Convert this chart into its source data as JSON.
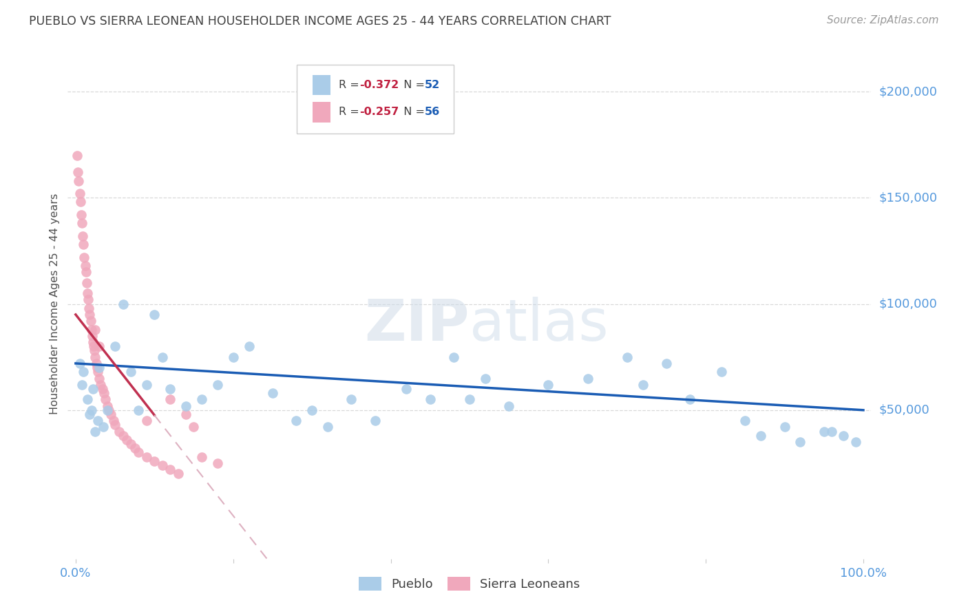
{
  "title": "PUEBLO VS SIERRA LEONEAN HOUSEHOLDER INCOME AGES 25 - 44 YEARS CORRELATION CHART",
  "source": "Source: ZipAtlas.com",
  "ylabel": "Householder Income Ages 25 - 44 years",
  "blue_r": "-0.372",
  "blue_n": "52",
  "pink_r": "-0.257",
  "pink_n": "56",
  "blue_color": "#aacce8",
  "pink_color": "#f0a8bc",
  "blue_line_color": "#1a5cb4",
  "pink_line_color": "#c03050",
  "pink_dash_color": "#ddb0c0",
  "title_color": "#404040",
  "tick_color": "#5599dd",
  "source_color": "#999999",
  "ylabel_color": "#505050",
  "legend_border_color": "#cccccc",
  "grid_color": "#d8d8d8",
  "ylim_min": -20000,
  "ylim_max": 220000,
  "xlim_min": -0.01,
  "xlim_max": 1.01,
  "blue_x": [
    0.005,
    0.008,
    0.01,
    0.015,
    0.018,
    0.02,
    0.022,
    0.025,
    0.028,
    0.03,
    0.035,
    0.04,
    0.05,
    0.06,
    0.07,
    0.08,
    0.09,
    0.1,
    0.11,
    0.12,
    0.14,
    0.16,
    0.18,
    0.2,
    0.22,
    0.25,
    0.28,
    0.3,
    0.32,
    0.35,
    0.38,
    0.42,
    0.45,
    0.48,
    0.5,
    0.52,
    0.55,
    0.6,
    0.65,
    0.7,
    0.72,
    0.75,
    0.78,
    0.82,
    0.85,
    0.87,
    0.9,
    0.92,
    0.95,
    0.96,
    0.975,
    0.99
  ],
  "blue_y": [
    72000,
    62000,
    68000,
    55000,
    48000,
    50000,
    60000,
    40000,
    45000,
    70000,
    42000,
    50000,
    80000,
    100000,
    68000,
    50000,
    62000,
    95000,
    75000,
    60000,
    52000,
    55000,
    62000,
    75000,
    80000,
    58000,
    45000,
    50000,
    42000,
    55000,
    45000,
    60000,
    55000,
    75000,
    55000,
    65000,
    52000,
    62000,
    65000,
    75000,
    62000,
    72000,
    55000,
    68000,
    45000,
    38000,
    42000,
    35000,
    40000,
    40000,
    38000,
    35000
  ],
  "pink_x": [
    0.002,
    0.003,
    0.004,
    0.005,
    0.006,
    0.007,
    0.008,
    0.009,
    0.01,
    0.011,
    0.012,
    0.013,
    0.014,
    0.015,
    0.016,
    0.017,
    0.018,
    0.019,
    0.02,
    0.021,
    0.022,
    0.023,
    0.024,
    0.025,
    0.026,
    0.027,
    0.028,
    0.03,
    0.032,
    0.034,
    0.036,
    0.038,
    0.04,
    0.042,
    0.045,
    0.048,
    0.05,
    0.055,
    0.06,
    0.065,
    0.07,
    0.075,
    0.08,
    0.09,
    0.1,
    0.11,
    0.12,
    0.13,
    0.14,
    0.15,
    0.16,
    0.18,
    0.03,
    0.025,
    0.12,
    0.09
  ],
  "pink_y": [
    170000,
    162000,
    158000,
    152000,
    148000,
    142000,
    138000,
    132000,
    128000,
    122000,
    118000,
    115000,
    110000,
    105000,
    102000,
    98000,
    95000,
    92000,
    88000,
    85000,
    82000,
    80000,
    78000,
    75000,
    72000,
    70000,
    68000,
    65000,
    62000,
    60000,
    58000,
    55000,
    52000,
    50000,
    48000,
    45000,
    43000,
    40000,
    38000,
    36000,
    34000,
    32000,
    30000,
    28000,
    26000,
    24000,
    22000,
    20000,
    48000,
    42000,
    28000,
    25000,
    80000,
    88000,
    55000,
    45000
  ]
}
